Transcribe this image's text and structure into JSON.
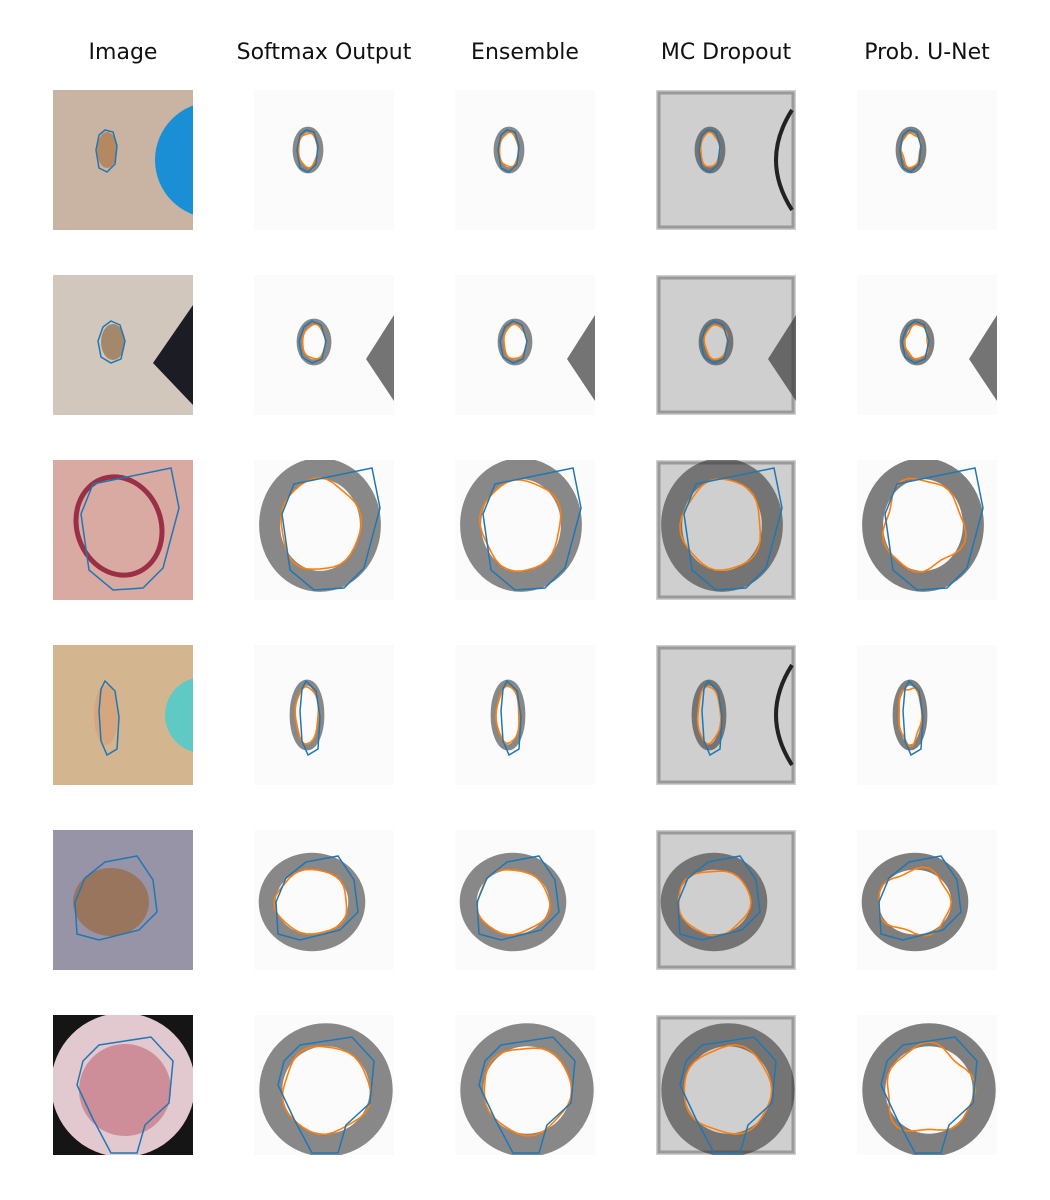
{
  "columns": [
    {
      "label": "Image"
    },
    {
      "label": "Softmax Output"
    },
    {
      "label": "Ensemble"
    },
    {
      "label": "MC Dropout"
    },
    {
      "label": "Prob. U-Net"
    }
  ],
  "rows": [
    {
      "description": "small brown mole, blue tape on right"
    },
    {
      "description": "small mole, dark object on right"
    },
    {
      "description": "red ring lesion"
    },
    {
      "description": "faint mole, teal tape on right"
    },
    {
      "description": "brown lesion on grey skin"
    },
    {
      "description": "pink lesion with dark vignette"
    }
  ],
  "colors": {
    "ground_truth_contour": "#1f77b4",
    "prediction_contour": "#ff7f0e"
  }
}
